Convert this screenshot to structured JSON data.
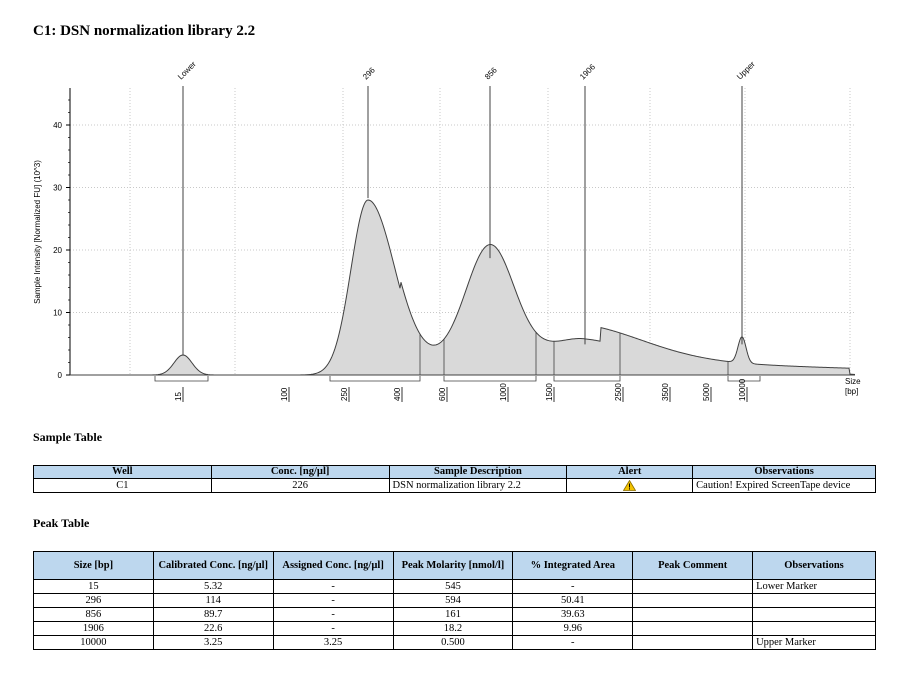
{
  "page_title": "C1: DSN normalization library 2.2",
  "chart_data": {
    "type": "area",
    "ylabel": "Sample Intensity [Normalized FU] (10^3)",
    "xlabel": "Size\n[bp]",
    "xlabel_line1": "Size",
    "xlabel_line2": "[bp]",
    "yticks": [
      0,
      10,
      20,
      30,
      40
    ],
    "ylim": [
      -1,
      46
    ],
    "x_tick_labels": [
      "15",
      "100",
      "250",
      "400",
      "600",
      "1000",
      "1500",
      "2500",
      "3500",
      "5000",
      "10000"
    ],
    "peaks": [
      {
        "label": "Lower",
        "size_bp": 15,
        "height": 3.2
      },
      {
        "label": "296",
        "size_bp": 296,
        "height": 28.3
      },
      {
        "label": "856",
        "size_bp": 856,
        "height": 18.7
      },
      {
        "label": "1906",
        "size_bp": 1906,
        "height": 4.9
      },
      {
        "label": "Upper",
        "size_bp": 10000,
        "height": 4.9
      }
    ],
    "grid": true,
    "fill_color": "#d9d9d9",
    "line_color": "#404040"
  },
  "sample_table": {
    "title": "Sample Table",
    "headers": [
      "Well",
      "Conc. [ng/µl]",
      "Sample Description",
      "Alert",
      "Observations"
    ],
    "rows": [
      {
        "well": "C1",
        "conc": "226",
        "description": "DSN normalization library 2.2",
        "alert_icon": "warning-icon",
        "observations": "Caution! Expired ScreenTape device"
      }
    ]
  },
  "peak_table": {
    "title": "Peak Table",
    "headers": [
      "Size [bp]",
      "Calibrated Conc. [ng/µl]",
      "Assigned Conc. [ng/µl]",
      "Peak Molarity [nmol/l]",
      "% Integrated Area",
      "Peak Comment",
      "Observations"
    ],
    "rows": [
      [
        "15",
        "5.32",
        "-",
        "545",
        "-",
        "",
        "Lower Marker"
      ],
      [
        "296",
        "114",
        "-",
        "594",
        "50.41",
        "",
        ""
      ],
      [
        "856",
        "89.7",
        "-",
        "161",
        "39.63",
        "",
        ""
      ],
      [
        "1906",
        "22.6",
        "-",
        "18.2",
        "9.96",
        "",
        ""
      ],
      [
        "10000",
        "3.25",
        "3.25",
        "0.500",
        "-",
        "",
        "Upper Marker"
      ]
    ]
  },
  "colors": {
    "header_bg": "#bdd7ee",
    "warning": "#f2c200"
  }
}
